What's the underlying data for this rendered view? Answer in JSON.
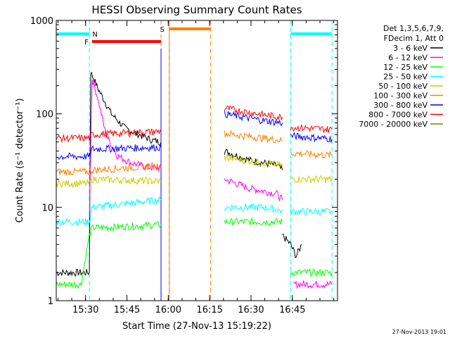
{
  "chart_data": {
    "type": "line",
    "title": "HESSI Observing Summary Count Rates",
    "xlabel": "Start Time (27-Nov-13 15:19:22)",
    "ylabel": "Count Rate (s⁻¹ detector⁻¹)",
    "y_scale": "log",
    "ylim": [
      1,
      1000
    ],
    "xlim_minutes_after_1519": [
      0,
      102
    ],
    "x_ticks": [
      "15:30",
      "15:45",
      "16:00",
      "16:15",
      "16:30",
      "16:45"
    ],
    "y_ticks": [
      "1",
      "10",
      "100",
      "1000"
    ],
    "grid": false,
    "legend_position": "top-right",
    "legend_header": [
      "Det 1,3,5,6,7,9,",
      "FDecim 1, Att 0"
    ],
    "footer_timestamp": "27-Nov-2013 19:01",
    "series": [
      {
        "name": "3 - 6 keV",
        "color": "#000000",
        "segments": [
          {
            "x": [
              0,
              12,
              12.5,
              15,
              20,
              25,
              30,
              35,
              38
            ],
            "y": [
              2,
              2,
              280,
              190,
              100,
              70,
              60,
              52,
              50
            ]
          },
          {
            "x": [
              61,
              70,
              80,
              82
            ],
            "y": [
              40,
              32,
              28,
              25
            ]
          },
          {
            "x": [
              82,
              85,
              87,
              89
            ],
            "y": [
              5,
              4,
              3,
              4
            ]
          }
        ]
      },
      {
        "name": "6 - 12 keV",
        "color": "#ff00ff",
        "segments": [
          {
            "x": [
              12,
              13,
              15,
              18,
              22,
              27,
              33,
              38
            ],
            "y": [
              8,
              240,
              150,
              60,
              36,
              30,
              27,
              26
            ]
          },
          {
            "x": [
              61,
              70,
              80,
              82
            ],
            "y": [
              20,
              16,
              14,
              12
            ]
          },
          {
            "x": [
              86,
              100
            ],
            "y": [
              1.5,
              1.5
            ]
          }
        ]
      },
      {
        "name": "12 - 25 keV",
        "color": "#00ff00",
        "segments": [
          {
            "x": [
              0,
              9,
              12,
              13,
              38
            ],
            "y": [
              1.5,
              1.5,
              5,
              6,
              6.5
            ]
          },
          {
            "x": [
              61,
              75,
              80,
              82
            ],
            "y": [
              7,
              7,
              7,
              7
            ]
          },
          {
            "x": [
              85,
              100
            ],
            "y": [
              2,
              2
            ]
          }
        ]
      },
      {
        "name": "25 - 50 keV",
        "color": "#00ffff",
        "segments": [
          {
            "x": [
              0,
              12,
              13,
              38
            ],
            "y": [
              7,
              7,
              10,
              12
            ]
          },
          {
            "x": [
              61,
              75,
              80,
              82
            ],
            "y": [
              10,
              10,
              9.5,
              9
            ]
          },
          {
            "x": [
              85,
              100
            ],
            "y": [
              9,
              9
            ]
          }
        ]
      },
      {
        "name": "50 - 100 keV",
        "color": "#cccc00",
        "segments": [
          {
            "x": [
              0,
              12,
              13,
              38
            ],
            "y": [
              18,
              18,
              20,
              19
            ]
          },
          {
            "x": [
              61,
              75,
              82
            ],
            "y": [
              34,
              30,
              28
            ]
          },
          {
            "x": [
              85,
              100
            ],
            "y": [
              20,
              20
            ]
          }
        ]
      },
      {
        "name": "100 - 300 keV",
        "color": "#ff8000",
        "segments": [
          {
            "x": [
              0,
              12,
              13,
              38
            ],
            "y": [
              24,
              24,
              25,
              28
            ]
          },
          {
            "x": [
              61,
              75,
              82
            ],
            "y": [
              62,
              55,
              52
            ]
          },
          {
            "x": [
              85,
              100
            ],
            "y": [
              38,
              36
            ]
          }
        ]
      },
      {
        "name": "300 - 800 keV",
        "color": "#0000ff",
        "segments": [
          {
            "x": [
              0,
              12,
              13,
              38
            ],
            "y": [
              35,
              35,
              42,
              44
            ]
          },
          {
            "x": [
              61,
              75,
              82
            ],
            "y": [
              100,
              85,
              80
            ]
          },
          {
            "x": [
              85,
              100
            ],
            "y": [
              58,
              54
            ]
          }
        ]
      },
      {
        "name": "800 - 7000 keV",
        "color": "#ff0000",
        "segments": [
          {
            "x": [
              0,
              12,
              13,
              38
            ],
            "y": [
              55,
              55,
              60,
              65
            ]
          },
          {
            "x": [
              61,
              75,
              82
            ],
            "y": [
              115,
              98,
              92
            ]
          },
          {
            "x": [
              85,
              100
            ],
            "y": [
              72,
              68
            ]
          }
        ]
      },
      {
        "name": "7000 - 20000 keV",
        "color": "#808000",
        "segments": []
      }
    ],
    "flags": [
      {
        "label": "N",
        "color": "#00ffff",
        "segments": [
          [
            0,
            12
          ],
          [
            85,
            100
          ]
        ],
        "boundaries": [
          12,
          85,
          100
        ]
      },
      {
        "label": "F",
        "color": "#ff0000",
        "segments": [
          [
            13,
            38
          ]
        ],
        "boundaries": []
      },
      {
        "label": "S",
        "color": "#ff8000",
        "segments": [
          [
            41,
            56
          ]
        ],
        "boundaries": [
          38,
          41,
          56
        ]
      }
    ],
    "data_gap_end": 38
  }
}
